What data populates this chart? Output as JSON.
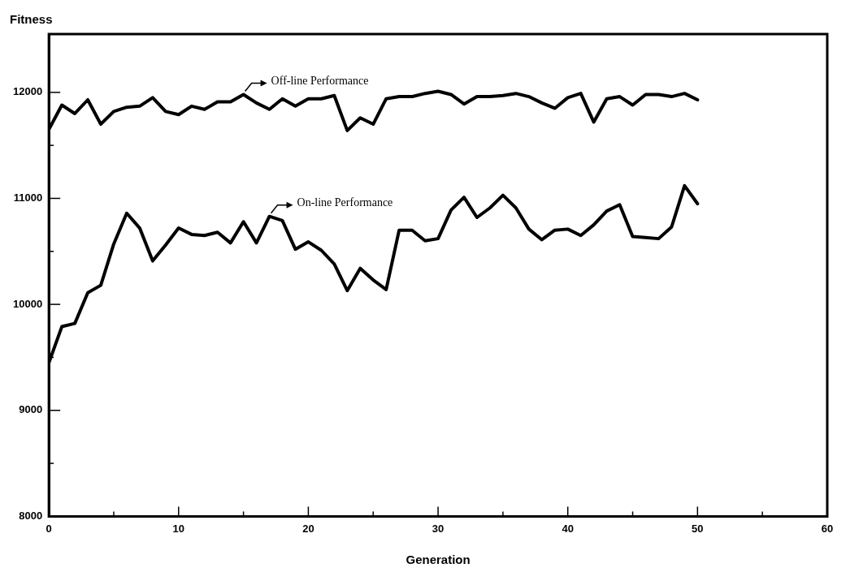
{
  "chart_data": {
    "type": "line",
    "xlabel": "Generation",
    "ylabel": "Fitness",
    "xlim": [
      0,
      60
    ],
    "ylim": [
      8000,
      12550
    ],
    "xticks": [
      0,
      {
        "value": 5,
        "label": null
      },
      10,
      {
        "value": 15,
        "label": null
      },
      20,
      {
        "value": 25,
        "label": null
      },
      30,
      {
        "value": 35,
        "label": null
      },
      40,
      {
        "value": 45,
        "label": null
      },
      50,
      {
        "value": 55,
        "label": null
      },
      60
    ],
    "yticks": [
      8000,
      {
        "value": 8500,
        "label": null
      },
      9000,
      {
        "value": 9500,
        "label": null
      },
      10000,
      {
        "value": 10500,
        "label": null
      },
      11000,
      {
        "value": 11500,
        "label": null
      },
      12000
    ],
    "x": [
      0,
      1,
      2,
      3,
      4,
      5,
      6,
      7,
      8,
      9,
      10,
      11,
      12,
      13,
      14,
      15,
      16,
      17,
      18,
      19,
      20,
      21,
      22,
      23,
      24,
      25,
      26,
      27,
      28,
      29,
      30,
      31,
      32,
      33,
      34,
      35,
      36,
      37,
      38,
      39,
      40,
      41,
      42,
      43,
      44,
      45,
      46,
      47,
      48,
      49,
      50
    ],
    "series": [
      {
        "color": "#000000",
        "values": [
          11650,
          11880,
          11800,
          11930,
          11700,
          11820,
          11860,
          11870,
          11950,
          11820,
          11790,
          11870,
          11840,
          11910,
          11910,
          11980,
          11900,
          11840,
          11940,
          11870,
          11940,
          11940,
          11970,
          11640,
          11760,
          11700,
          11940,
          11960,
          11960,
          11990,
          12010,
          11980,
          11890,
          11960,
          11960,
          11970,
          11990,
          11960,
          11900,
          11850,
          11950,
          11990,
          11720,
          11940,
          11960,
          11880,
          11980,
          11980,
          11960,
          11990,
          11930
        ]
      },
      {
        "color": "#000000",
        "values": [
          9450,
          9790,
          9820,
          10110,
          10180,
          10570,
          10860,
          10720,
          10410,
          10560,
          10720,
          10660,
          10650,
          10680,
          10580,
          10780,
          10580,
          10830,
          10790,
          10520,
          10590,
          10510,
          10380,
          10130,
          10340,
          10230,
          10140,
          10700,
          10700,
          10600,
          10620,
          10890,
          11010,
          10820,
          10910,
          11030,
          10910,
          10710,
          10610,
          10700,
          10710,
          10650,
          10750,
          10880,
          10940,
          10640,
          10630,
          10620,
          10730,
          11120,
          10950
        ]
      }
    ],
    "annotations": [
      {
        "text": "Off-line Performance",
        "x": 15,
        "y": 11980
      },
      {
        "text": "On-line Performance",
        "x": 17,
        "y": 10830
      }
    ],
    "grid": false,
    "legend": false,
    "marker": "none",
    "line_style": "solid"
  }
}
